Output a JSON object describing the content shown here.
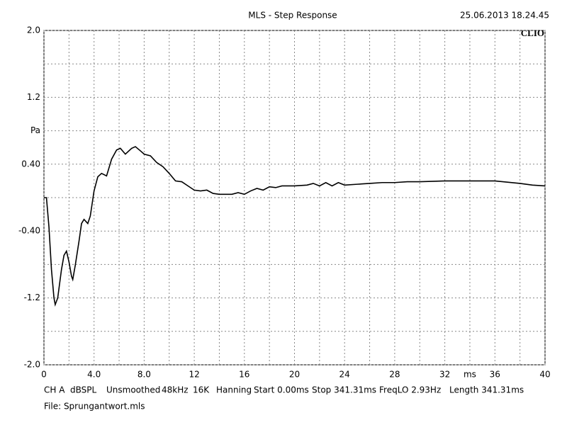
{
  "chart_data": {
    "type": "line",
    "title": "MLS - Step Response",
    "timestamp": "25.06.2013 18.24.45",
    "brand": "CLIO",
    "x": [
      0,
      0.2,
      0.4,
      0.6,
      0.8,
      0.9,
      1.1,
      1.4,
      1.6,
      1.8,
      2.0,
      2.2,
      2.3,
      2.5,
      2.8,
      3.0,
      3.2,
      3.5,
      3.7,
      4.0,
      4.3,
      4.6,
      5.0,
      5.4,
      5.8,
      6.1,
      6.5,
      7.0,
      7.3,
      7.7,
      8.0,
      8.5,
      9.0,
      9.5,
      10,
      10.5,
      11,
      11.5,
      12,
      12.5,
      13,
      13.5,
      14,
      15,
      15.5,
      16,
      16.5,
      17,
      17.5,
      18,
      18.5,
      19,
      20,
      21,
      21.5,
      22,
      22.5,
      23,
      23.5,
      24,
      25,
      26,
      27,
      28,
      29,
      30,
      32,
      34,
      35,
      36,
      38,
      39,
      40
    ],
    "series": [
      {
        "color": "#000000",
        "values": [
          0,
          0,
          -0.35,
          -0.86,
          -1.2,
          -1.28,
          -1.2,
          -0.86,
          -0.69,
          -0.64,
          -0.77,
          -0.94,
          -0.98,
          -0.81,
          -0.52,
          -0.31,
          -0.26,
          -0.31,
          -0.22,
          0.08,
          0.25,
          0.29,
          0.26,
          0.46,
          0.57,
          0.59,
          0.52,
          0.59,
          0.61,
          0.56,
          0.52,
          0.5,
          0.42,
          0.37,
          0.29,
          0.2,
          0.19,
          0.14,
          0.09,
          0.08,
          0.09,
          0.05,
          0.04,
          0.04,
          0.06,
          0.04,
          0.08,
          0.11,
          0.09,
          0.13,
          0.12,
          0.14,
          0.14,
          0.15,
          0.17,
          0.14,
          0.18,
          0.14,
          0.18,
          0.15,
          0.16,
          0.17,
          0.18,
          0.18,
          0.19,
          0.19,
          0.2,
          0.2,
          0.2,
          0.2,
          0.17,
          0.15,
          0.14
        ]
      }
    ],
    "xlim": [
      0,
      40
    ],
    "ylim": [
      -2,
      2
    ],
    "xticks": [
      0,
      {
        "value": 4,
        "label": "4.0"
      },
      {
        "value": 8,
        "label": "8.0"
      },
      12,
      16,
      20,
      24,
      28,
      32,
      {
        "value": 34,
        "label": "ms"
      },
      36,
      40
    ],
    "yticks": [
      {
        "value": 2,
        "label": "2.0"
      },
      {
        "value": 0.8,
        "label": "Pa"
      },
      1.2,
      {
        "value": 0.4,
        "label": "0.40"
      },
      {
        "value": -0.4,
        "label": "-0.40"
      },
      -1.2,
      {
        "value": -2,
        "label": "-2.0"
      }
    ],
    "xgrid_minor": [
      2,
      6,
      10,
      14,
      18,
      22,
      26,
      30,
      38
    ],
    "ygrid_minor": [
      1.6,
      0,
      -0.8,
      -1.6
    ],
    "grid": true,
    "settings": [
      "CH A",
      "dBSPL",
      "Unsmoothed",
      "48kHz",
      "16K",
      "Hanning",
      "Start 0.00ms",
      "Stop 341.31ms",
      "FreqLO 2.93Hz",
      "Length 341.31ms"
    ],
    "file": "File: Sprungantwort.mls"
  }
}
